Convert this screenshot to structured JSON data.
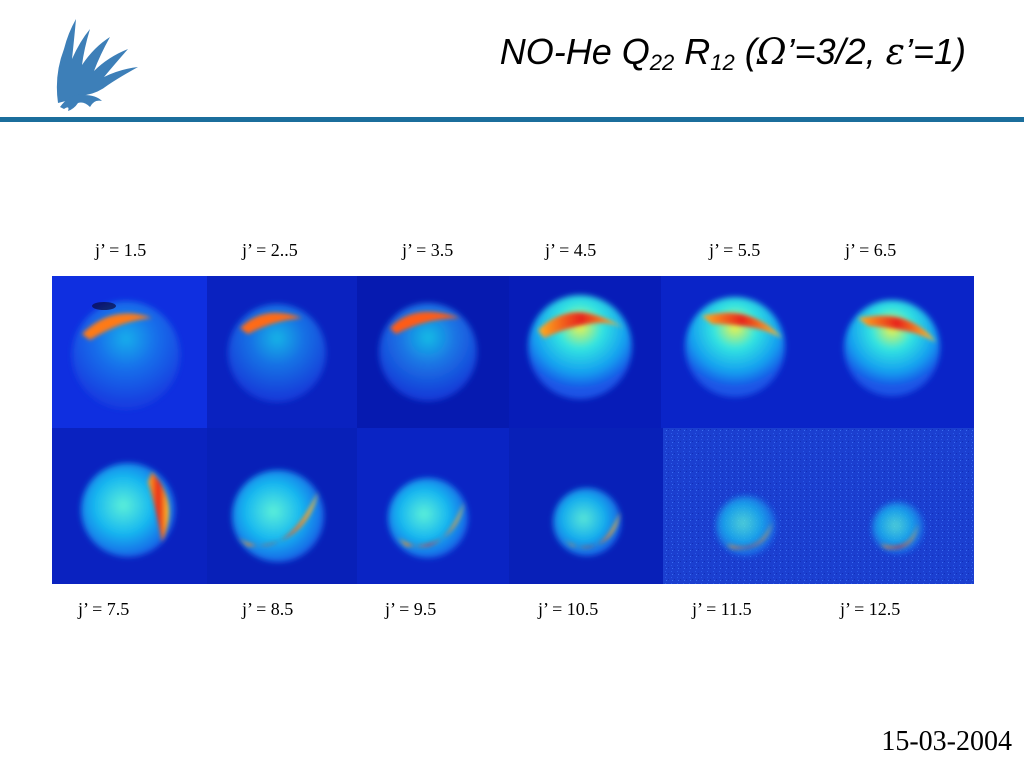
{
  "slide": {
    "title": {
      "prefix": "NO-He Q",
      "sub1": "22",
      "mid": " R",
      "sub2": "12",
      "open": " (",
      "omega": "Ω",
      "omega_rest": "’=3/2, ",
      "epsilon": "ε",
      "epsilon_rest": "’=1)"
    },
    "date": "15-03-2004",
    "logo_icon": "griffin-logo-icon",
    "accent_color": "#1b6e9c",
    "top_labels": [
      "j’ = 1.5",
      "j’ = 2..5",
      "j’ = 3.5",
      "j’ = 4.5",
      "j’ = 5.5",
      "j’ = 6.5"
    ],
    "bottom_labels": [
      "j’ = 7.5",
      "j’ = 8.5",
      "j’ = 9.5",
      "j’ = 10.5",
      "j’ = 11.5",
      "j’ = 12.5"
    ]
  }
}
